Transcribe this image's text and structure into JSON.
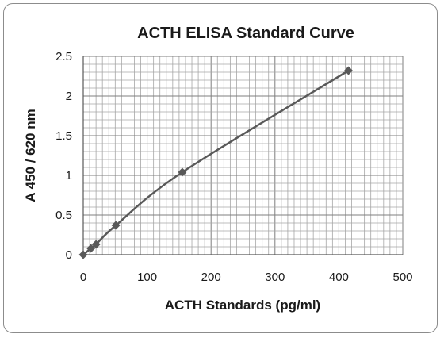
{
  "chart_data": {
    "type": "scatter",
    "title": "ACTH ELISA Standard Curve",
    "xlabel": "ACTH Standards (pg/ml)",
    "ylabel": "A 450 / 620 nm",
    "xlim": [
      0,
      500
    ],
    "ylim": [
      0,
      2.5
    ],
    "x_ticks": [
      "0",
      "100",
      "200",
      "300",
      "400",
      "500"
    ],
    "y_ticks": [
      "0",
      "0.5",
      "1",
      "1.5",
      "2",
      "2.5"
    ],
    "x_minor_step": 10,
    "y_minor_step": 0.1,
    "grid": true,
    "legend": "none",
    "series": [
      {
        "marker": "diamond",
        "line": "smooth",
        "color": "#595959",
        "points": [
          {
            "x": 0,
            "y": 0.0
          },
          {
            "x": 12,
            "y": 0.08
          },
          {
            "x": 20,
            "y": 0.13
          },
          {
            "x": 51,
            "y": 0.37
          },
          {
            "x": 155,
            "y": 1.04
          },
          {
            "x": 415,
            "y": 2.32
          }
        ]
      }
    ]
  }
}
